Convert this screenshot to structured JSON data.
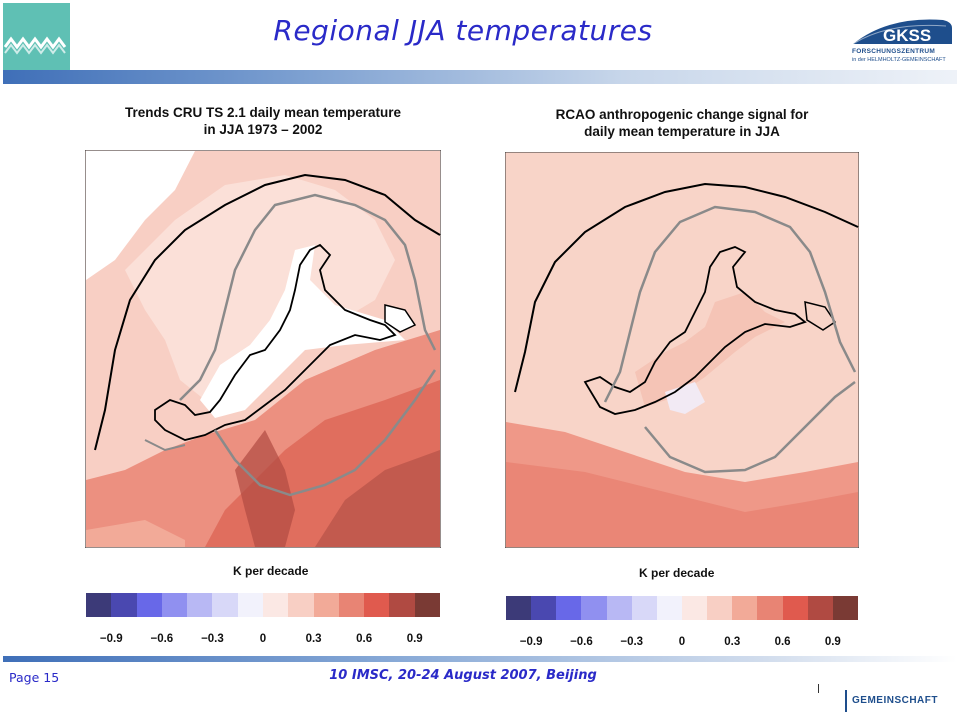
{
  "slide": {
    "title": "Regional JJA temperatures",
    "page": "Page 15",
    "footer": "10 IMSC, 20-24 August 2007, Beijing"
  },
  "logos": {
    "left": "wave-logo",
    "right": {
      "name": "GKSS",
      "line1": "FORSCHUNGSZENTRUM",
      "line2": "in der HELMHOLTZ-GEMEINSCHAFT",
      "fragment": "GEMEINSCHAFT"
    }
  },
  "panels": [
    {
      "title_line1": "Trends CRU TS 2.1 daily mean temperature",
      "title_line2": "in JJA 1973 – 2002",
      "colorbar_label": "K per decade"
    },
    {
      "title_line1": "RCAO anthropogenic change signal for",
      "title_line2": "daily mean temperature in JJA",
      "colorbar_label": "K per decade"
    }
  ],
  "colorbar": {
    "colors": [
      "#3c3a78",
      "#4a48b0",
      "#6868e8",
      "#9090f0",
      "#b8b8f4",
      "#d8d8f8",
      "#f2f2fc",
      "#fbe8e4",
      "#f8cfc4",
      "#f2aa98",
      "#e88474",
      "#e05a4e",
      "#b04a42",
      "#7a3a34"
    ],
    "tick_labels": [
      "−0.9",
      "−0.6",
      "−0.3",
      "0",
      "0.3",
      "0.6",
      "0.9"
    ]
  }
}
